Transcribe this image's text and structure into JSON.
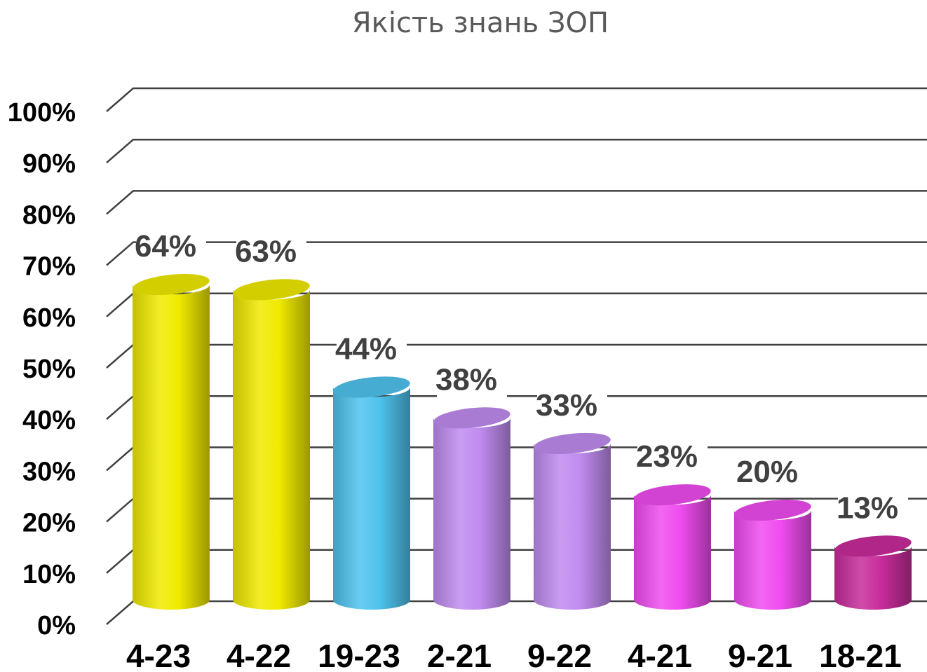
{
  "chart_data": {
    "type": "bar",
    "style": "3d-cylinder",
    "title": "Якість знань ЗОП",
    "categories": [
      "4-23",
      "4-22",
      "19-23",
      "2-21",
      "9-22",
      "4-21",
      "9-21",
      "18-21"
    ],
    "values": [
      64,
      63,
      44,
      38,
      33,
      23,
      20,
      13
    ],
    "data_labels": [
      "64%",
      "63%",
      "44%",
      "38%",
      "33%",
      "23%",
      "20%",
      "13%"
    ],
    "bar_colors": [
      "#f0ea00",
      "#f0ea00",
      "#4fc3ee",
      "#c08cf0",
      "#c08cf0",
      "#f04cf0",
      "#f04cf0",
      "#c82c9c"
    ],
    "yticks": [
      0,
      10,
      20,
      30,
      40,
      50,
      60,
      70,
      80,
      90,
      100
    ],
    "ytick_labels": [
      "0%",
      "10%",
      "20%",
      "30%",
      "40%",
      "50%",
      "60%",
      "70%",
      "80%",
      "90%",
      "100%"
    ],
    "ylim": [
      0,
      100
    ],
    "grid": true,
    "legend": "none",
    "xlabel": "",
    "ylabel": ""
  }
}
